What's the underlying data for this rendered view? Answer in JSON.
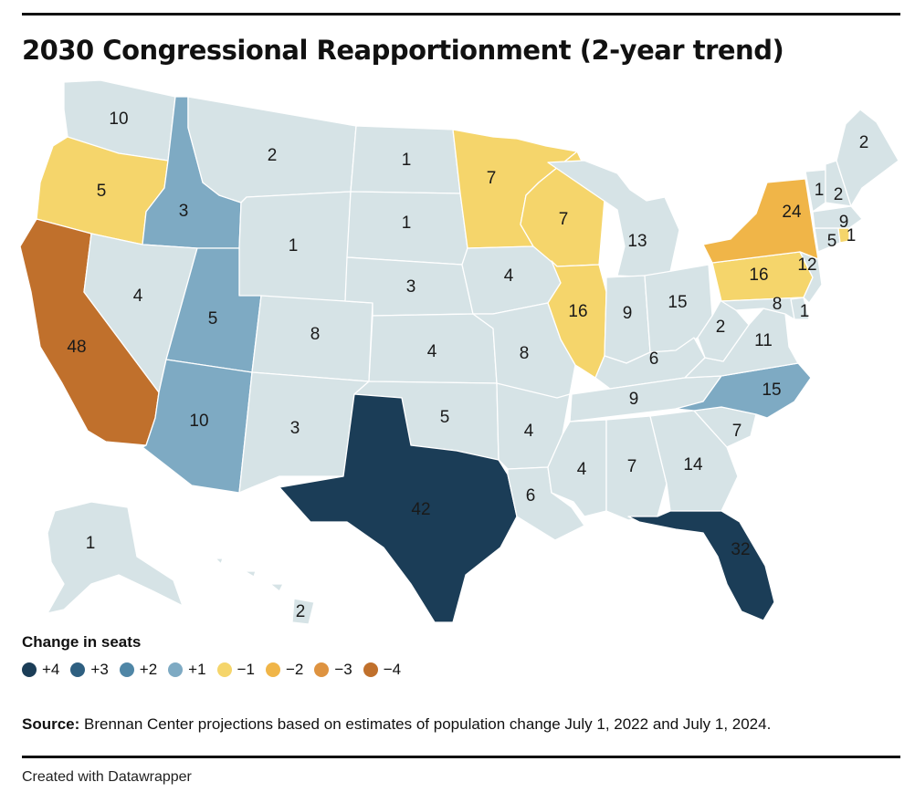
{
  "title": "2030 Congressional Reapportionment (2-year trend)",
  "legend": {
    "title": "Change in seats",
    "items": [
      {
        "label": "+4",
        "color": "#1b3d57"
      },
      {
        "label": "+3",
        "color": "#2e5f80"
      },
      {
        "label": "+2",
        "color": "#4f86a6"
      },
      {
        "label": "+1",
        "color": "#7eaac3"
      },
      {
        "label": "−1",
        "color": "#f5d56b"
      },
      {
        "label": "−2",
        "color": "#f0b548"
      },
      {
        "label": "−3",
        "color": "#de9340"
      },
      {
        "label": "−4",
        "color": "#c0702c"
      }
    ]
  },
  "no_change_color": "#d6e3e6",
  "states": [
    {
      "id": "WA",
      "seats": "10",
      "change": 0
    },
    {
      "id": "OR",
      "seats": "5",
      "change": -1
    },
    {
      "id": "CA",
      "seats": "48",
      "change": -4
    },
    {
      "id": "ID",
      "seats": "3",
      "change": 1
    },
    {
      "id": "NV",
      "seats": "4",
      "change": 0
    },
    {
      "id": "MT",
      "seats": "2",
      "change": 0
    },
    {
      "id": "WY",
      "seats": "1",
      "change": 0
    },
    {
      "id": "UT",
      "seats": "5",
      "change": 1
    },
    {
      "id": "AZ",
      "seats": "10",
      "change": 1
    },
    {
      "id": "CO",
      "seats": "8",
      "change": 0
    },
    {
      "id": "NM",
      "seats": "3",
      "change": 0
    },
    {
      "id": "ND",
      "seats": "1",
      "change": 0
    },
    {
      "id": "SD",
      "seats": "1",
      "change": 0
    },
    {
      "id": "NE",
      "seats": "3",
      "change": 0
    },
    {
      "id": "KS",
      "seats": "4",
      "change": 0
    },
    {
      "id": "OK",
      "seats": "5",
      "change": 0
    },
    {
      "id": "TX",
      "seats": "42",
      "change": 4
    },
    {
      "id": "MN",
      "seats": "7",
      "change": -1
    },
    {
      "id": "IA",
      "seats": "4",
      "change": 0
    },
    {
      "id": "MO",
      "seats": "8",
      "change": 0
    },
    {
      "id": "AR",
      "seats": "4",
      "change": 0
    },
    {
      "id": "LA",
      "seats": "6",
      "change": 0
    },
    {
      "id": "WI",
      "seats": "7",
      "change": -1
    },
    {
      "id": "IL",
      "seats": "16",
      "change": -1
    },
    {
      "id": "MI",
      "seats": "13",
      "change": 0
    },
    {
      "id": "IN",
      "seats": "9",
      "change": 0
    },
    {
      "id": "OH",
      "seats": "15",
      "change": 0
    },
    {
      "id": "KY",
      "seats": "6",
      "change": 0
    },
    {
      "id": "TN",
      "seats": "9",
      "change": 0
    },
    {
      "id": "MS",
      "seats": "4",
      "change": 0
    },
    {
      "id": "AL",
      "seats": "7",
      "change": 0
    },
    {
      "id": "GA",
      "seats": "14",
      "change": 0
    },
    {
      "id": "FL",
      "seats": "32",
      "change": 4
    },
    {
      "id": "SC",
      "seats": "7",
      "change": 0
    },
    {
      "id": "NC",
      "seats": "15",
      "change": 1
    },
    {
      "id": "VA",
      "seats": "11",
      "change": 0
    },
    {
      "id": "WV",
      "seats": "2",
      "change": 0
    },
    {
      "id": "PA",
      "seats": "16",
      "change": -1
    },
    {
      "id": "NY",
      "seats": "24",
      "change": -2
    },
    {
      "id": "NJ",
      "seats": "12",
      "change": 0
    },
    {
      "id": "MD",
      "seats": "8",
      "change": 0
    },
    {
      "id": "DE",
      "seats": "1",
      "change": 0
    },
    {
      "id": "CT",
      "seats": "5",
      "change": 0
    },
    {
      "id": "RI",
      "seats": "1",
      "change": -1
    },
    {
      "id": "MA",
      "seats": "9",
      "change": 0
    },
    {
      "id": "VT",
      "seats": "1",
      "change": 0
    },
    {
      "id": "NH",
      "seats": "2",
      "change": 0
    },
    {
      "id": "ME",
      "seats": "2",
      "change": 0
    },
    {
      "id": "AK",
      "seats": "1",
      "change": 0
    },
    {
      "id": "HI",
      "seats": "2",
      "change": 0
    }
  ],
  "source": {
    "label": "Source:",
    "text": " Brennan Center projections based on estimates of population change July 1, 2022 and July 1, 2024."
  },
  "credit": "Created with Datawrapper"
}
